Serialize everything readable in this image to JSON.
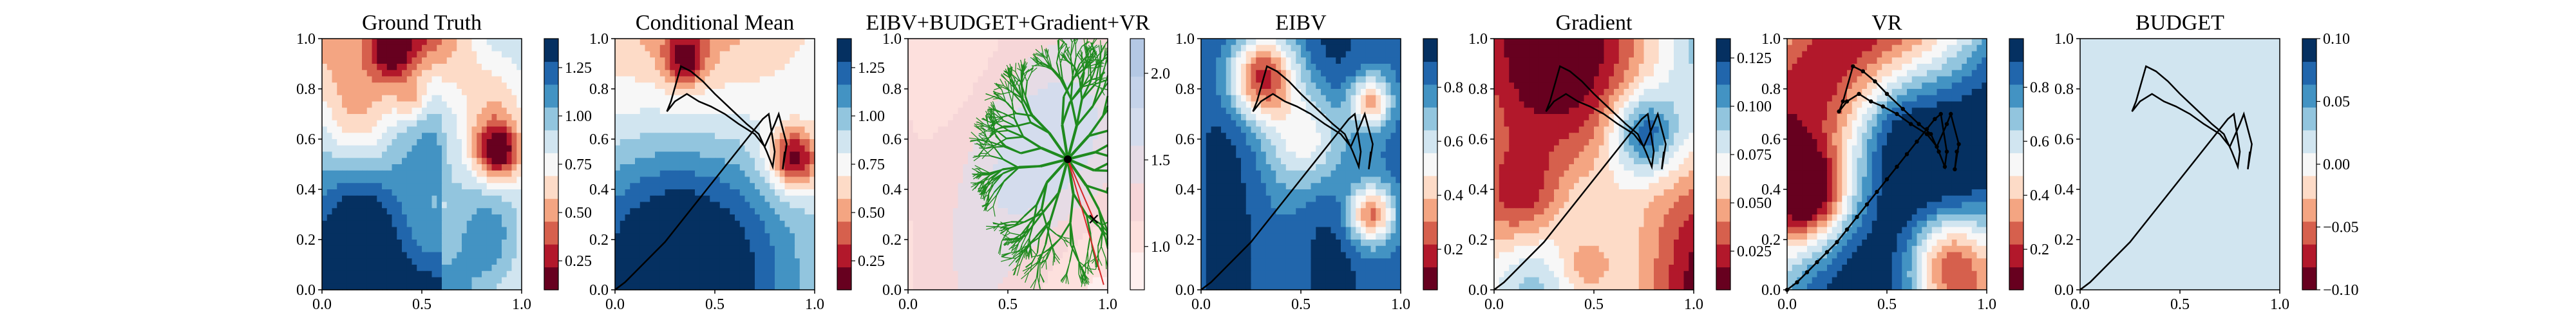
{
  "figure": {
    "background": "#ffffff"
  },
  "panels": [
    {
      "title": "Ground Truth",
      "field": "truth",
      "colormap": "RdBu",
      "colorbar": {
        "ticks": [
          "0.25",
          "0.50",
          "0.75",
          "1.00",
          "1.25"
        ],
        "range": [
          0.1,
          1.4
        ]
      },
      "path": "none"
    },
    {
      "title": "Conditional Mean",
      "field": "mean",
      "colormap": "RdBu",
      "colorbar": {
        "ticks": [
          "0.25",
          "0.50",
          "0.75",
          "1.00",
          "1.25"
        ],
        "range": [
          0.1,
          1.4
        ]
      },
      "path": "trajectory"
    },
    {
      "title": "EIBV+BUDGET+Gradient+VR",
      "field": "tree",
      "colormap": "Reds-Blues-light",
      "colorbar": {
        "ticks": [
          "1.0",
          "1.5",
          "2.0"
        ],
        "range": [
          0.75,
          2.2
        ]
      },
      "path": "tree"
    },
    {
      "title": "EIBV",
      "field": "eibv",
      "colormap": "RdBu",
      "colorbar": {
        "ticks": [
          "0.2",
          "0.4",
          "0.6",
          "0.8"
        ],
        "range": [
          0.05,
          0.98
        ]
      },
      "path": "trajectory"
    },
    {
      "title": "Gradient",
      "field": "grad",
      "colormap": "RdBu",
      "colorbar": {
        "ticks": [
          "0.025",
          "0.050",
          "0.075",
          "0.100",
          "0.125"
        ],
        "range": [
          0.005,
          0.135
        ]
      },
      "path": "trajectory"
    },
    {
      "title": "VR",
      "field": "vr",
      "colormap": "RdBu",
      "colorbar": {
        "ticks": [
          "0.2",
          "0.4",
          "0.6",
          "0.8"
        ],
        "range": [
          0.05,
          0.98
        ]
      },
      "path": "trajectory-dotted"
    },
    {
      "title": "BUDGET",
      "field": "flat",
      "colormap": "RdBu",
      "colorbar": {
        "ticks": [
          "−0.10",
          "−0.05",
          "0.00",
          "0.05",
          "0.10"
        ],
        "range": [
          -0.1,
          0.1
        ]
      },
      "path": "trajectory"
    }
  ],
  "chart_data": {
    "type": "heatmap",
    "x_axis": {
      "range": [
        0,
        1
      ],
      "ticks": [
        "0.0",
        "0.5",
        "1.0"
      ]
    },
    "y_axis": {
      "range": [
        0,
        1
      ],
      "ticks": [
        "0.0",
        "0.2",
        "0.4",
        "0.6",
        "0.8",
        "1.0"
      ]
    },
    "trajectory": {
      "x": [
        0.0,
        0.05,
        0.1,
        0.15,
        0.2,
        0.25,
        0.3,
        0.35,
        0.4,
        0.45,
        0.5,
        0.55,
        0.6,
        0.65,
        0.7,
        0.74,
        0.77,
        0.8,
        0.79,
        0.76,
        0.72,
        0.66,
        0.58,
        0.5,
        0.44,
        0.38,
        0.33,
        0.28,
        0.26,
        0.3,
        0.36,
        0.42,
        0.48,
        0.55,
        0.62,
        0.7,
        0.75,
        0.8,
        0.82,
        0.86,
        0.84,
        0.85
      ],
      "y": [
        0.0,
        0.03,
        0.07,
        0.11,
        0.15,
        0.19,
        0.24,
        0.29,
        0.34,
        0.39,
        0.44,
        0.49,
        0.54,
        0.59,
        0.64,
        0.68,
        0.7,
        0.55,
        0.49,
        0.55,
        0.62,
        0.66,
        0.72,
        0.78,
        0.83,
        0.87,
        0.89,
        0.75,
        0.71,
        0.75,
        0.78,
        0.75,
        0.73,
        0.7,
        0.66,
        0.62,
        0.57,
        0.66,
        0.7,
        0.58,
        0.48,
        0.55
      ]
    },
    "tree_root": {
      "x": 0.8,
      "y": 0.52
    },
    "tree_goal": {
      "x": 0.93,
      "y": 0.28
    }
  }
}
